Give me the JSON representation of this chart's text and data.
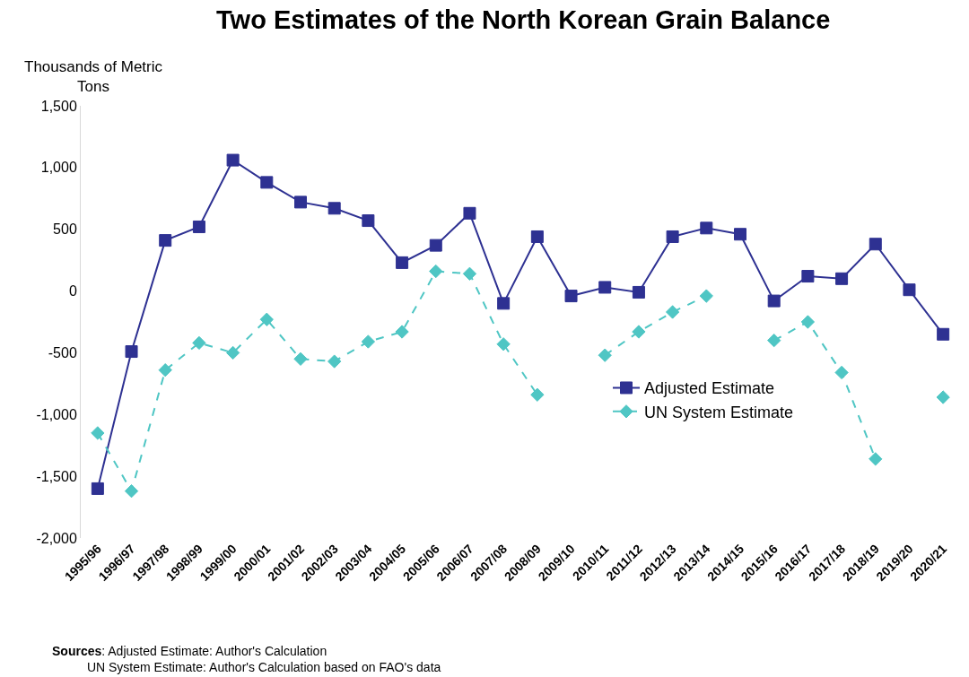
{
  "chart_data": {
    "type": "line",
    "title": "Two Estimates of the North Korean Grain Balance",
    "ylabel": "Thousands of Metric Tons",
    "categories": [
      "1995/96",
      "1996/97",
      "1997/98",
      "1998/99",
      "1999/00",
      "2000/01",
      "2001/02",
      "2002/03",
      "2003/04",
      "2004/05",
      "2005/06",
      "2006/07",
      "2007/08",
      "2008/09",
      "2009/10",
      "2010/11",
      "2011/12",
      "2012/13",
      "2013/14",
      "2014/15",
      "2015/16",
      "2016/17",
      "2017/18",
      "2018/19",
      "2019/20",
      "2020/21"
    ],
    "series": [
      {
        "name": "Adjusted Estimate",
        "color": "#2e3192",
        "marker": "square",
        "line_style": "solid",
        "values": [
          -1600,
          -490,
          410,
          520,
          1060,
          880,
          720,
          670,
          570,
          230,
          370,
          630,
          -100,
          440,
          -40,
          30,
          -10,
          440,
          510,
          460,
          -80,
          120,
          100,
          380,
          10,
          -350
        ]
      },
      {
        "name": "UN System Estimate",
        "color": "#4fc6c4",
        "marker": "diamond",
        "line_style": "dashed",
        "values": [
          -1150,
          -1620,
          -640,
          -420,
          -500,
          -230,
          -550,
          -570,
          -410,
          -330,
          160,
          140,
          -430,
          -840,
          null,
          -520,
          -330,
          -170,
          -40,
          null,
          -400,
          -250,
          -660,
          -1360,
          null,
          -860
        ]
      }
    ],
    "ylim": [
      -2000,
      1500
    ],
    "yticks": [
      {
        "value": -2000,
        "label": "-2,000"
      },
      {
        "value": -1500,
        "label": "-1,500"
      },
      {
        "value": -1000,
        "label": "-1,000"
      },
      {
        "value": -500,
        "label": "-500"
      },
      {
        "value": 0,
        "label": "0"
      },
      {
        "value": 500,
        "label": "500"
      },
      {
        "value": 1000,
        "label": "1,000"
      },
      {
        "value": 1500,
        "label": "1,500"
      }
    ],
    "grid": false,
    "legend": "right",
    "annotations": [
      "Sources: Adjusted Estimate: Author's Calculation\nUN System Estimate: Author's Calculation based on FAO's data"
    ]
  }
}
